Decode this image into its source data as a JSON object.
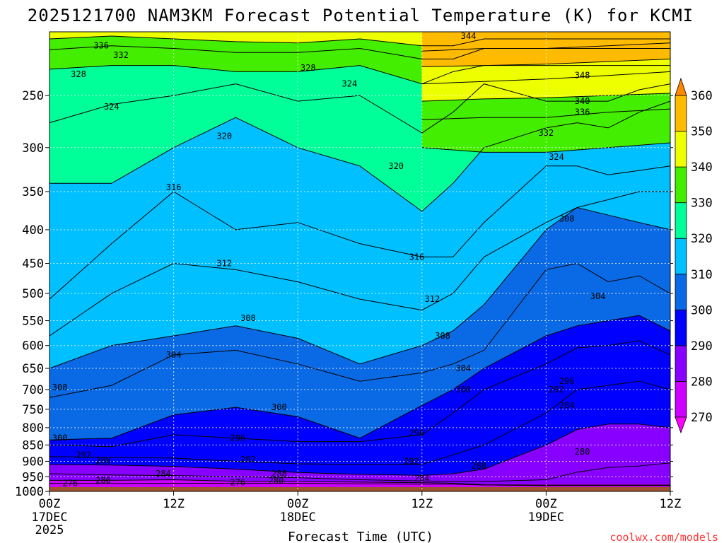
{
  "chart_data": {
    "type": "heatmap",
    "title": "2025121700 NAM3KM Forecast Potential Temperature (K) for KCMI",
    "xlabel": "Forecast Time (UTC)",
    "ylabel": "",
    "credit": "coolwx.com/models",
    "x_range_hours": [
      0,
      60
    ],
    "y_range_hpa": [
      1000,
      200
    ],
    "x_ticks": [
      {
        "hour": 0,
        "l1": "00Z",
        "l2": "17DEC",
        "l3": "2025"
      },
      {
        "hour": 12,
        "l1": "12Z",
        "l2": "",
        "l3": ""
      },
      {
        "hour": 24,
        "l1": "00Z",
        "l2": "18DEC",
        "l3": ""
      },
      {
        "hour": 36,
        "l1": "12Z",
        "l2": "",
        "l3": ""
      },
      {
        "hour": 48,
        "l1": "00Z",
        "l2": "19DEC",
        "l3": ""
      },
      {
        "hour": 60,
        "l1": "12Z",
        "l2": "",
        "l3": ""
      }
    ],
    "y_ticks": [
      250,
      300,
      350,
      400,
      450,
      500,
      550,
      600,
      650,
      700,
      750,
      800,
      850,
      900,
      950,
      1000
    ],
    "colorbar": {
      "ticks": [
        270,
        280,
        290,
        300,
        310,
        320,
        330,
        340,
        350,
        360
      ],
      "bands": [
        {
          "from": 260,
          "to": 270,
          "color": "#ff00ff"
        },
        {
          "from": 270,
          "to": 280,
          "color": "#cc00ff"
        },
        {
          "from": 280,
          "to": 290,
          "color": "#8800ff"
        },
        {
          "from": 290,
          "to": 300,
          "color": "#0000ff"
        },
        {
          "from": 300,
          "to": 310,
          "color": "#0a6ae6"
        },
        {
          "from": 310,
          "to": 320,
          "color": "#00c0ff"
        },
        {
          "from": 320,
          "to": 330,
          "color": "#00ff99"
        },
        {
          "from": 330,
          "to": 340,
          "color": "#44ee00"
        },
        {
          "from": 340,
          "to": 350,
          "color": "#eeff00"
        },
        {
          "from": 350,
          "to": 360,
          "color": "#ffbb00"
        },
        {
          "from": 360,
          "to": 370,
          "color": "#ff8800"
        }
      ]
    },
    "terrain_color": "#a0522d",
    "surface_pressure_hpa": 985,
    "profile_hours": [
      0,
      6,
      12,
      18,
      24,
      30,
      36,
      39,
      42,
      48,
      51,
      54,
      57,
      60
    ],
    "isentrope_pressures": [
      {
        "theta": 276,
        "p": [
          972,
          973,
          972,
          972,
          972,
          974,
          975,
          975,
          978,
          980,
          980,
          980,
          980,
          980
        ]
      },
      {
        "theta": 280,
        "p": [
          962,
          962,
          960,
          965,
          966,
          968,
          970,
          972,
          977,
          978,
          978,
          978,
          978,
          978
        ]
      },
      {
        "theta": 284,
        "p": [
          940,
          944,
          946,
          950,
          953,
          960,
          964,
          966,
          966,
          960,
          935,
          920,
          915,
          905
        ]
      },
      {
        "theta": 288,
        "p": [
          910,
          912,
          916,
          925,
          936,
          942,
          945,
          940,
          925,
          850,
          805,
          790,
          790,
          800
        ]
      },
      {
        "theta": 292,
        "p": [
          885,
          888,
          890,
          900,
          908,
          910,
          910,
          880,
          850,
          760,
          700,
          690,
          680,
          700
        ]
      },
      {
        "theta": 296,
        "p": [
          850,
          855,
          820,
          830,
          840,
          840,
          820,
          760,
          700,
          640,
          605,
          600,
          590,
          620
        ]
      },
      {
        "theta": 300,
        "p": [
          835,
          830,
          765,
          745,
          770,
          830,
          740,
          700,
          650,
          580,
          560,
          550,
          540,
          570
        ]
      },
      {
        "theta": 304,
        "p": [
          720,
          690,
          620,
          610,
          640,
          680,
          660,
          640,
          610,
          460,
          450,
          480,
          470,
          500
        ]
      },
      {
        "theta": 308,
        "p": [
          650,
          600,
          580,
          560,
          585,
          640,
          600,
          570,
          520,
          400,
          370,
          380,
          390,
          400
        ]
      },
      {
        "theta": 312,
        "p": [
          580,
          500,
          450,
          460,
          480,
          510,
          530,
          500,
          440,
          390,
          370,
          360,
          350,
          350
        ]
      },
      {
        "theta": 316,
        "p": [
          510,
          420,
          350,
          400,
          390,
          420,
          440,
          440,
          390,
          320,
          320,
          330,
          325,
          320
        ]
      },
      {
        "theta": 320,
        "p": [
          340,
          340,
          300,
          270,
          300,
          320,
          375,
          340,
          300,
          280,
          275,
          280,
          265,
          255
        ]
      },
      {
        "theta": 324,
        "p": [
          275,
          258,
          250,
          240,
          255,
          250,
          285,
          265,
          240,
          255,
          255,
          255,
          245,
          240
        ]
      },
      {
        "theta": 328,
        "p": [
          228,
          225,
          225,
          230,
          230,
          225,
          240,
          230,
          225,
          225,
          225,
          225,
          225,
          225
        ]
      },
      {
        "theta": 332,
        "p": [
          213,
          210,
          212,
          215,
          215,
          212,
          220,
          220,
          212,
          212,
          212,
          212,
          212,
          212
        ]
      },
      {
        "theta": 336,
        "p": [
          205,
          203,
          205,
          207,
          208,
          205,
          210,
          210,
          205,
          205,
          205,
          205,
          205,
          205
        ]
      }
    ],
    "contour_labels": [
      {
        "theta": 336,
        "hour": 5.0,
        "p": 210
      },
      {
        "theta": 332,
        "hour": 6.9,
        "p": 217
      },
      {
        "theta": 328,
        "hour": 2.8,
        "p": 232
      },
      {
        "theta": 328,
        "hour": 25.0,
        "p": 227
      },
      {
        "theta": 324,
        "hour": 6.0,
        "p": 260
      },
      {
        "theta": 324,
        "hour": 29.0,
        "p": 240
      },
      {
        "theta": 320,
        "hour": 16.9,
        "p": 288
      },
      {
        "theta": 320,
        "hour": 33.5,
        "p": 320
      },
      {
        "theta": 316,
        "hour": 12.0,
        "p": 345
      },
      {
        "theta": 316,
        "hour": 35.5,
        "p": 440
      },
      {
        "theta": 312,
        "hour": 16.9,
        "p": 450
      },
      {
        "theta": 312,
        "hour": 37.0,
        "p": 510
      },
      {
        "theta": 308,
        "hour": 19.2,
        "p": 545
      },
      {
        "theta": 308,
        "hour": 38.0,
        "p": 580
      },
      {
        "theta": 308,
        "hour": 50.0,
        "p": 385
      },
      {
        "theta": 308,
        "hour": 1.0,
        "p": 695
      },
      {
        "theta": 304,
        "hour": 12.0,
        "p": 620
      },
      {
        "theta": 304,
        "hour": 40.0,
        "p": 650
      },
      {
        "theta": 304,
        "hour": 53.0,
        "p": 505
      },
      {
        "theta": 300,
        "hour": 22.2,
        "p": 745
      },
      {
        "theta": 300,
        "hour": 40.0,
        "p": 700
      },
      {
        "theta": 300,
        "hour": 1.0,
        "p": 830
      },
      {
        "theta": 296,
        "hour": 18.2,
        "p": 830
      },
      {
        "theta": 296,
        "hour": 35.5,
        "p": 815
      },
      {
        "theta": 296,
        "hour": 50.0,
        "p": 680
      },
      {
        "theta": 292,
        "hour": 3.3,
        "p": 880
      },
      {
        "theta": 292,
        "hour": 19.2,
        "p": 895
      },
      {
        "theta": 292,
        "hour": 35.0,
        "p": 900
      },
      {
        "theta": 292,
        "hour": 49.0,
        "p": 700
      },
      {
        "theta": 288,
        "hour": 5.2,
        "p": 898
      },
      {
        "theta": 288,
        "hour": 22.2,
        "p": 940
      },
      {
        "theta": 288,
        "hour": 41.5,
        "p": 915
      },
      {
        "theta": 284,
        "hour": 11.0,
        "p": 940
      },
      {
        "theta": 284,
        "hour": 36.0,
        "p": 955
      },
      {
        "theta": 284,
        "hour": 50.0,
        "p": 740
      },
      {
        "theta": 280,
        "hour": 5.2,
        "p": 962
      },
      {
        "theta": 280,
        "hour": 21.9,
        "p": 963
      },
      {
        "theta": 280,
        "hour": 51.5,
        "p": 870
      },
      {
        "theta": 276,
        "hour": 2.0,
        "p": 972
      },
      {
        "theta": 276,
        "hour": 18.2,
        "p": 969
      },
      {
        "theta": 336,
        "hour": 51.5,
        "p": 265
      },
      {
        "theta": 340,
        "hour": 51.5,
        "p": 255
      },
      {
        "theta": 344,
        "hour": 40.5,
        "p": 203
      },
      {
        "theta": 348,
        "hour": 51.5,
        "p": 233
      },
      {
        "theta": 332,
        "hour": 48.0,
        "p": 285
      },
      {
        "theta": 324,
        "hour": 49.0,
        "p": 310
      }
    ],
    "upper_jet_isentropes": [
      {
        "theta": 332,
        "p": [
          300,
          305,
          305,
          300,
          295
        ]
      },
      {
        "theta": 336,
        "p": [
          272,
          270,
          270,
          265,
          262
        ]
      },
      {
        "theta": 340,
        "p": [
          255,
          253,
          252,
          250,
          248
        ]
      },
      {
        "theta": 344,
        "p": [
          240,
          238,
          236,
          233,
          230
        ]
      },
      {
        "theta": 348,
        "p": [
          226,
          225,
          224,
          222,
          220
        ]
      },
      {
        "theta": 352,
        "p": [
          214,
          212,
          212,
          210,
          208
        ]
      }
    ],
    "upper_jet_hours": [
      36,
      42,
      48,
      54,
      60
    ]
  }
}
